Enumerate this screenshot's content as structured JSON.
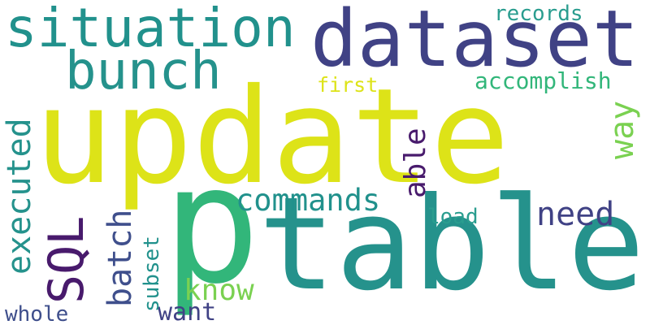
{
  "colors": {
    "background": "#ffffff",
    "yellow": "#dde318",
    "teal": "#25928c",
    "indigo": "#3b4e8d",
    "navy": "#404285",
    "dark_purple": "#481a6c",
    "green": "#32b67a",
    "light_green": "#7ad151",
    "cyan_teal": "#21918c",
    "sea_green": "#2a9d8f",
    "blue_slate": "#3f4f8c"
  },
  "words": {
    "update": "update",
    "table": "table",
    "p": "p",
    "dataset": "dataset",
    "situation": "situation",
    "bunch": "bunch",
    "records": "records",
    "first": "first",
    "accomplish": "accomplish",
    "way": "way",
    "able": "able",
    "executed": "executed",
    "commands": "commands",
    "need": "need",
    "load": "load",
    "sql": "SQL",
    "batch": "batch",
    "subset": "subset",
    "know": "know",
    "whole": "whole",
    "want": "want"
  }
}
